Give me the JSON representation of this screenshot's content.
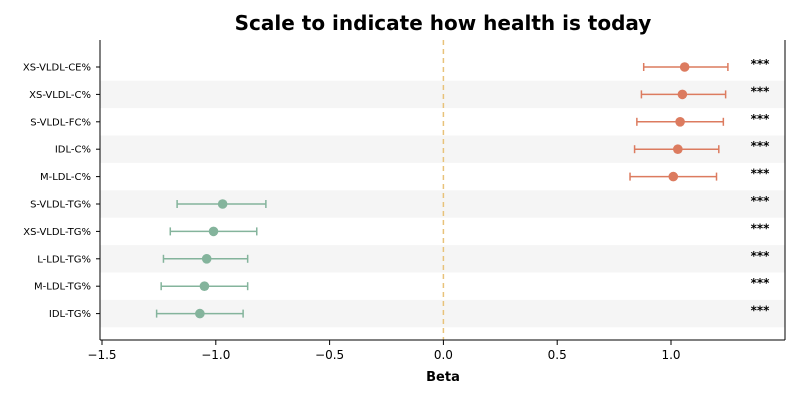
{
  "chart_data": {
    "type": "forest",
    "title": "Scale to indicate how health is today",
    "xlabel": "Beta",
    "xlim": [
      -1.5,
      1.5
    ],
    "xticks": [
      -1.5,
      -1.0,
      -0.5,
      0.0,
      0.5,
      1.0
    ],
    "xtick_labels": [
      "−1.5",
      "−1.0",
      "−0.5",
      "0.0",
      "0.5",
      "1.0"
    ],
    "reference_line": 0.0,
    "rows": [
      {
        "label": "XS-VLDL-CE%",
        "beta": 1.06,
        "ci_low": 0.88,
        "ci_high": 1.25,
        "sig": "***",
        "direction": "positive"
      },
      {
        "label": "XS-VLDL-C%",
        "beta": 1.05,
        "ci_low": 0.87,
        "ci_high": 1.24,
        "sig": "***",
        "direction": "positive"
      },
      {
        "label": "S-VLDL-FC%",
        "beta": 1.04,
        "ci_low": 0.85,
        "ci_high": 1.23,
        "sig": "***",
        "direction": "positive"
      },
      {
        "label": "IDL-C%",
        "beta": 1.03,
        "ci_low": 0.84,
        "ci_high": 1.21,
        "sig": "***",
        "direction": "positive"
      },
      {
        "label": "M-LDL-C%",
        "beta": 1.01,
        "ci_low": 0.82,
        "ci_high": 1.2,
        "sig": "***",
        "direction": "positive"
      },
      {
        "label": "S-VLDL-TG%",
        "beta": -0.97,
        "ci_low": -1.17,
        "ci_high": -0.78,
        "sig": "***",
        "direction": "negative"
      },
      {
        "label": "XS-VLDL-TG%",
        "beta": -1.01,
        "ci_low": -1.2,
        "ci_high": -0.82,
        "sig": "***",
        "direction": "negative"
      },
      {
        "label": "L-LDL-TG%",
        "beta": -1.04,
        "ci_low": -1.23,
        "ci_high": -0.86,
        "sig": "***",
        "direction": "negative"
      },
      {
        "label": "M-LDL-TG%",
        "beta": -1.05,
        "ci_low": -1.24,
        "ci_high": -0.86,
        "sig": "***",
        "direction": "negative"
      },
      {
        "label": "IDL-TG%",
        "beta": -1.07,
        "ci_low": -1.26,
        "ci_high": -0.88,
        "sig": "***",
        "direction": "negative"
      }
    ],
    "colors": {
      "positive": "#dc7b5f",
      "negative": "#84b49c",
      "reference_line": "#e8c27a",
      "stripe": "#f5f5f5"
    },
    "grid": false,
    "striped_rows": true
  }
}
